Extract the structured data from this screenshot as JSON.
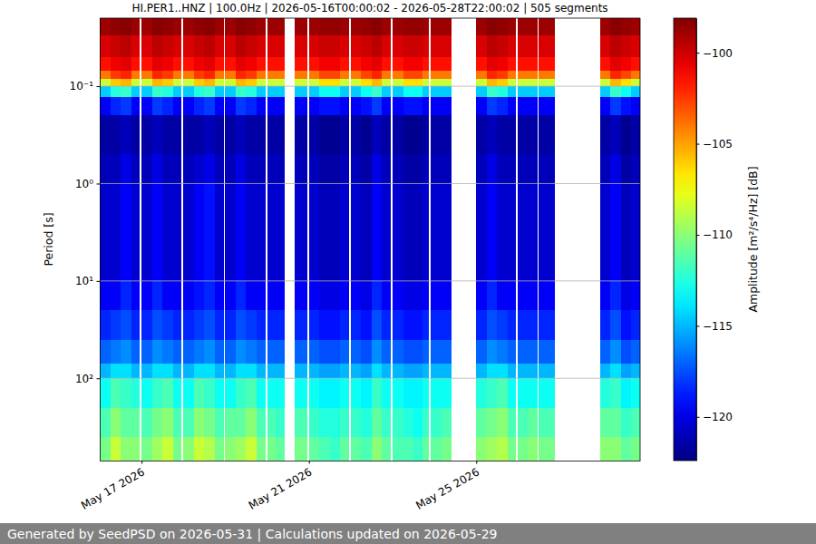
{
  "chart_data": {
    "type": "heatmap",
    "title": "HI.PER1..HNZ | 100.0Hz | 2026-05-16T00:00:02 - 2026-05-28T22:00:02 | 505 segments",
    "ylabel": "Period [s]",
    "annotations": [
      "Generated by SeedPSD on 2026-05-31 | Calculations updated on 2026-05-29"
    ],
    "log": "y",
    "grid": "y",
    "xlim": [
      "2026-05-16T00:00:02",
      "2026-05-28T22:00:02"
    ],
    "xticks": [
      {
        "value": "2026-05-17",
        "label": "May 17 2026"
      },
      {
        "value": "2026-05-21",
        "label": "May 21 2026"
      },
      {
        "value": "2026-05-25",
        "label": "May 25 2026"
      }
    ],
    "ylim": [
      0.02,
      700
    ],
    "yticks": [
      {
        "value": 0.1,
        "label": "10⁻¹"
      },
      {
        "value": 1,
        "label": "10⁰"
      },
      {
        "value": 10,
        "label": "10¹"
      },
      {
        "value": 100,
        "label": "10²"
      }
    ],
    "colorbar": {
      "label": "Amplitude [m²/s⁴/Hz] [dB]",
      "range": [
        -122.4,
        -98.1
      ],
      "ticks": [
        {
          "value": -120,
          "label": "−120"
        },
        {
          "value": -115,
          "label": "−115"
        },
        {
          "value": -110,
          "label": "−110"
        },
        {
          "value": -105,
          "label": "−105"
        },
        {
          "value": -100,
          "label": "−100"
        }
      ]
    },
    "cells": {
      "x_edges": [
        "2026-05-16T00:00:02",
        "2026-05-16T06:00:00",
        "2026-05-16T12:00:00",
        "2026-05-16T18:00:00",
        "2026-05-16T23:00:00",
        "2026-05-17T00:00:00",
        "2026-05-17T06:00:00",
        "2026-05-17T12:00:00",
        "2026-05-17T18:00:00",
        "2026-05-17T23:00:00",
        "2026-05-18T00:00:00",
        "2026-05-18T06:00:00",
        "2026-05-18T12:00:00",
        "2026-05-18T18:00:00",
        "2026-05-18T23:00:00",
        "2026-05-19T00:00:00",
        "2026-05-19T06:00:00",
        "2026-05-19T12:00:00",
        "2026-05-19T18:00:00",
        "2026-05-19T23:00:00",
        "2026-05-20T00:00:00",
        "2026-05-20T05:00:00",
        "2026-05-20T10:00:00",
        "2026-05-20T16:00:00",
        "2026-05-20T23:00:00",
        "2026-05-21T00:00:00",
        "2026-05-21T06:00:00",
        "2026-05-21T12:00:00",
        "2026-05-21T18:00:00",
        "2026-05-21T23:00:00",
        "2026-05-22T00:00:00",
        "2026-05-22T06:00:00",
        "2026-05-22T12:00:00",
        "2026-05-22T18:00:00",
        "2026-05-22T23:00:00",
        "2026-05-23T00:00:00",
        "2026-05-23T06:00:00",
        "2026-05-23T12:00:00",
        "2026-05-23T17:00:00",
        "2026-05-23T21:00:00",
        "2026-05-23T22:00:00",
        "2026-05-24T04:00:00",
        "2026-05-24T10:00:00",
        "2026-05-25T00:00:00",
        "2026-05-25T06:00:00",
        "2026-05-25T12:00:00",
        "2026-05-25T18:00:00",
        "2026-05-25T23:00:00",
        "2026-05-26T00:00:00",
        "2026-05-26T06:00:00",
        "2026-05-26T11:00:00",
        "2026-05-26T12:00:00",
        "2026-05-26T17:00:00",
        "2026-05-26T21:00:00",
        "2026-05-27T23:00:00",
        "2026-05-28T05:00:00",
        "2026-05-28T11:00:00",
        "2026-05-28T17:00:00",
        "2026-05-28T22:00:02"
      ],
      "y_edges": [
        0.02,
        0.03,
        0.05,
        0.07,
        0.085,
        0.1,
        0.13,
        0.2,
        0.5,
        1,
        3,
        10,
        20,
        40,
        70,
        100,
        200,
        400,
        700
      ],
      "values": [
        [
          -98.8,
          -100.2,
          -101.5,
          -104,
          -108.5,
          -114.5,
          -119.5,
          -121.5,
          -121,
          -120.5,
          -120.5,
          -119.5,
          -118.5,
          -117,
          -115,
          -113,
          -111.5,
          -110.5
        ],
        [
          -98.5,
          -99.8,
          -100.8,
          -102.5,
          -106,
          -112.5,
          -118.5,
          -121.5,
          -121,
          -120.5,
          -120.5,
          -119.5,
          -118,
          -116.5,
          -114,
          -111.5,
          -110,
          -108.5
        ],
        [
          -98.3,
          -99.5,
          -100.5,
          -102,
          -105.5,
          -112,
          -118,
          -121,
          -120,
          -119.5,
          -119.5,
          -118.5,
          -117.5,
          -116,
          -114,
          -112,
          -111,
          -110
        ],
        [
          -98.8,
          -100.2,
          -101.5,
          -104,
          -108.5,
          -114.5,
          -119.5,
          -121.5,
          -121,
          -120.5,
          -120.5,
          -119.5,
          -118.5,
          -117,
          -115,
          -112.5,
          -111,
          -110
        ],
        null,
        [
          -98.8,
          -100.2,
          -101.5,
          -104,
          -108.5,
          -114.5,
          -119.5,
          -121.5,
          -121,
          -120.5,
          -120.5,
          -119.5,
          -118.5,
          -117,
          -115,
          -113,
          -111.5,
          -110.5
        ],
        [
          -98.3,
          -99.5,
          -100.5,
          -102,
          -105.5,
          -112,
          -118,
          -121,
          -120,
          -119.5,
          -119.5,
          -118.5,
          -117.5,
          -116,
          -114,
          -112,
          -110.5,
          -109.5
        ],
        [
          -98.5,
          -99.8,
          -100.8,
          -102.5,
          -106,
          -112.5,
          -118.5,
          -121.5,
          -121,
          -120.5,
          -120.5,
          -119.5,
          -118,
          -116.5,
          -114,
          -111.5,
          -110,
          -108.5
        ],
        [
          -98.8,
          -100.2,
          -101.5,
          -104,
          -108.5,
          -114.5,
          -119.5,
          -121.5,
          -121,
          -120.5,
          -120.5,
          -119.5,
          -118.5,
          -117,
          -115,
          -113,
          -111.5,
          -110.5
        ],
        null,
        [
          -98.8,
          -100.2,
          -101.5,
          -104,
          -108.5,
          -114.5,
          -119.5,
          -121.5,
          -121,
          -120.5,
          -120.5,
          -119.5,
          -118.5,
          -117,
          -115,
          -113,
          -111.5,
          -110
        ],
        [
          -98.5,
          -99.8,
          -100.8,
          -102.5,
          -106,
          -112.5,
          -118.5,
          -121.5,
          -120.5,
          -119.5,
          -119.5,
          -119,
          -118,
          -116.5,
          -114,
          -111.5,
          -110,
          -108.5
        ],
        [
          -98.3,
          -99.5,
          -100.5,
          -102,
          -105.5,
          -112,
          -118,
          -121,
          -120,
          -119,
          -119,
          -118.5,
          -117.5,
          -116,
          -114,
          -112,
          -110.5,
          -109
        ],
        [
          -98.8,
          -100.2,
          -101.5,
          -104,
          -108.5,
          -114.5,
          -119.5,
          -121.5,
          -121,
          -120.5,
          -120.5,
          -119.5,
          -118.5,
          -117,
          -115,
          -113,
          -111.5,
          -110.5
        ],
        null,
        [
          -98.8,
          -100.2,
          -101.5,
          -104,
          -108.5,
          -114.5,
          -119.5,
          -121.5,
          -121,
          -120.5,
          -120.5,
          -119.5,
          -118.5,
          -117,
          -115,
          -113,
          -111,
          -110
        ],
        [
          -98.3,
          -99.5,
          -100.5,
          -102,
          -105.5,
          -112,
          -118,
          -121,
          -120,
          -119.5,
          -119.5,
          -118.5,
          -117.5,
          -116,
          -114,
          -112,
          -111,
          -109.5
        ],
        [
          -98.5,
          -99.8,
          -100.8,
          -102.5,
          -106,
          -112.5,
          -118.5,
          -121.5,
          -121,
          -120.5,
          -120.5,
          -119.5,
          -118,
          -116.5,
          -114,
          -111.5,
          -110,
          -108.5
        ],
        [
          -98.8,
          -100.2,
          -101.5,
          -104,
          -108.5,
          -114.5,
          -119.5,
          -121.5,
          -121,
          -120.5,
          -120.5,
          -119.5,
          -118.5,
          -117,
          -115,
          -113,
          -111.5,
          -110.5
        ],
        null,
        [
          -98.8,
          -100.2,
          -101.5,
          -104,
          -108.5,
          -114.5,
          -119.5,
          -121.5,
          -121,
          -120.5,
          -120.5,
          -119.5,
          -118.5,
          -117,
          -115,
          -113,
          -111.5,
          -110.5
        ],
        [
          -98.8,
          -100.2,
          -101.5,
          -104,
          -108.5,
          -114.5,
          -119.5,
          -121.5,
          -121,
          -120.5,
          -120.5,
          -119.5,
          -118.5,
          -117,
          -115,
          -113,
          -112,
          -111
        ],
        null,
        [
          -98.8,
          -100.2,
          -101.5,
          -104,
          -108.5,
          -114.5,
          -119.5,
          -121.5,
          -121,
          -120.5,
          -120.5,
          -119.5,
          -118.5,
          -117,
          -115,
          -113,
          -111.5,
          -110.5
        ],
        null,
        [
          -98.8,
          -100.2,
          -101.5,
          -104,
          -108.5,
          -114.5,
          -119.5,
          -121.5,
          -121,
          -120.5,
          -120.5,
          -119.5,
          -118.5,
          -117,
          -115,
          -113,
          -112,
          -111
        ],
        [
          -98.6,
          -99.9,
          -100.9,
          -102.8,
          -106.5,
          -113,
          -119,
          -122,
          -121.5,
          -121,
          -121,
          -120,
          -119,
          -117.5,
          -115.5,
          -113.5,
          -112.5,
          -111.5
        ],
        [
          -98.6,
          -99.9,
          -100.9,
          -102.8,
          -106.5,
          -113,
          -119,
          -122,
          -121.5,
          -121,
          -121,
          -120,
          -119,
          -117.5,
          -115.5,
          -113.5,
          -112.5,
          -112
        ],
        [
          -98.8,
          -100.2,
          -101.5,
          -104,
          -108.5,
          -114.5,
          -119.5,
          -121.5,
          -121,
          -120.5,
          -120.5,
          -119.5,
          -118.5,
          -117,
          -115,
          -113,
          -112,
          -111
        ],
        null,
        [
          -98.8,
          -100.2,
          -101.5,
          -104,
          -108.5,
          -114.5,
          -119.5,
          -121.5,
          -121,
          -120.5,
          -120.5,
          -119.5,
          -118.5,
          -117,
          -115,
          -113,
          -112,
          -111
        ],
        [
          -98.6,
          -99.9,
          -100.9,
          -102.8,
          -106.5,
          -113,
          -119,
          -122,
          -121.5,
          -121,
          -121,
          -120,
          -119,
          -117.5,
          -115.5,
          -113.5,
          -112.5,
          -111.5
        ],
        [
          -98.3,
          -99.5,
          -100.5,
          -102,
          -105.5,
          -112,
          -118,
          -121,
          -120,
          -119.5,
          -119.5,
          -118.5,
          -117.5,
          -116,
          -114,
          -112,
          -111,
          -110
        ],
        [
          -98.8,
          -100.2,
          -101.5,
          -104,
          -108.5,
          -114.5,
          -119.5,
          -121.5,
          -121,
          -120.5,
          -120.5,
          -119.5,
          -118.5,
          -117,
          -115,
          -113,
          -112,
          -111
        ],
        null,
        [
          -98.8,
          -100.2,
          -101.5,
          -104,
          -108.5,
          -114.5,
          -119.5,
          -121.5,
          -121,
          -120.5,
          -120.5,
          -119.5,
          -118.5,
          -117,
          -115,
          -113,
          -112,
          -111.5
        ],
        [
          -98.6,
          -99.9,
          -100.9,
          -102.8,
          -106.5,
          -113,
          -119,
          -122,
          -121.5,
          -121,
          -121,
          -120,
          -119,
          -117.5,
          -115.5,
          -113.5,
          -112.5,
          -111.5
        ],
        [
          -98.6,
          -99.9,
          -100.9,
          -102.8,
          -106.5,
          -113,
          -119,
          -122,
          -121.5,
          -121,
          -121,
          -120,
          -119,
          -117.5,
          -115.5,
          -113.5,
          -113,
          -112
        ],
        [
          -98.8,
          -100.2,
          -101.5,
          -104,
          -108.5,
          -114.5,
          -119.5,
          -121.5,
          -121,
          -120.5,
          -120.5,
          -119.5,
          -118.5,
          -117,
          -115,
          -113,
          -112,
          -111
        ],
        null,
        [
          -98.8,
          -100.2,
          -101.5,
          -104,
          -108.5,
          -114.5,
          -119.5,
          -121.5,
          -121,
          -120.5,
          -120.5,
          -119.5,
          -118.5,
          -117,
          -115,
          -113,
          -112,
          -111
        ],
        [
          -98.8,
          -100.2,
          -101.5,
          -104,
          -108.5,
          -114.5,
          -119.5,
          -121.5,
          -121,
          -120.5,
          -120.5,
          -119.5,
          -118.5,
          -117,
          -115,
          -113,
          -111.5,
          -110.5
        ],
        null,
        [
          -98.8,
          -100.2,
          -101.5,
          -104,
          -108.5,
          -114.5,
          -119.5,
          -121.5,
          -121,
          -120.5,
          -120.5,
          -119.5,
          -118.5,
          -117,
          -115,
          -112.5,
          -111,
          -110
        ],
        [
          -98.3,
          -99.5,
          -100.5,
          -102,
          -105.5,
          -112,
          -118,
          -121,
          -120,
          -119.5,
          -119.5,
          -118.5,
          -117.5,
          -116,
          -114,
          -112,
          -110.5,
          -109.5
        ],
        [
          -98.5,
          -99.8,
          -100.8,
          -102.5,
          -106,
          -112.5,
          -118.5,
          -121.5,
          -121,
          -120.5,
          -120.5,
          -119.5,
          -118,
          -116.5,
          -114,
          -111.5,
          -110,
          -109
        ],
        [
          -98.8,
          -100.2,
          -101.5,
          -104,
          -108.5,
          -114.5,
          -119.5,
          -121.5,
          -121,
          -120.5,
          -120.5,
          -119.5,
          -118.5,
          -117,
          -115,
          -113,
          -111.5,
          -110.5
        ],
        null,
        [
          -98.8,
          -100.2,
          -101.5,
          -104,
          -108.5,
          -114.5,
          -119.5,
          -121.5,
          -121,
          -120.5,
          -120.5,
          -119.5,
          -118.5,
          -117,
          -115,
          -113,
          -111.5,
          -110.5
        ],
        [
          -98.8,
          -100.2,
          -101.5,
          -104,
          -108.5,
          -114.5,
          -119.5,
          -121.5,
          -121,
          -120.5,
          -120.5,
          -119.5,
          -118.5,
          -117,
          -115,
          -113,
          -111,
          -110
        ],
        null,
        [
          -98.8,
          -100.2,
          -101.5,
          -104,
          -108.5,
          -114.5,
          -119.5,
          -121.5,
          -121,
          -120.5,
          -120.5,
          -119.5,
          -118.5,
          -117,
          -115,
          -113,
          -111.5,
          -110.5
        ],
        [
          -98.8,
          -100.2,
          -101.5,
          -104,
          -108.5,
          -114.5,
          -119.5,
          -121.5,
          -121,
          -120.5,
          -120.5,
          -119.5,
          -118.5,
          -117,
          -115,
          -113,
          -111.5,
          -110.5
        ],
        null,
        [
          -98.8,
          -100.2,
          -101.5,
          -104,
          -108.5,
          -114.5,
          -119.5,
          -121.5,
          -121,
          -120.5,
          -120.5,
          -119.5,
          -118.5,
          -117,
          -115,
          -112.5,
          -111,
          -110
        ],
        [
          -98.3,
          -99.5,
          -100.5,
          -102,
          -105.5,
          -112,
          -118,
          -121,
          -120,
          -119.5,
          -119.5,
          -118.5,
          -117.5,
          -116,
          -114,
          -112,
          -111,
          -110
        ],
        [
          -98.6,
          -99.9,
          -100.9,
          -102.8,
          -106.5,
          -113,
          -119,
          -122,
          -121.5,
          -121,
          -121,
          -120,
          -119,
          -117.5,
          -115.5,
          -113.5,
          -112,
          -111
        ],
        [
          -98.8,
          -100.2,
          -101.5,
          -104,
          -108.5,
          -114.5,
          -119.5,
          -121.5,
          -121,
          -120.5,
          -120.5,
          -119.5,
          -118.5,
          -117,
          -115,
          -113,
          -111.5,
          -110.5
        ]
      ]
    }
  }
}
